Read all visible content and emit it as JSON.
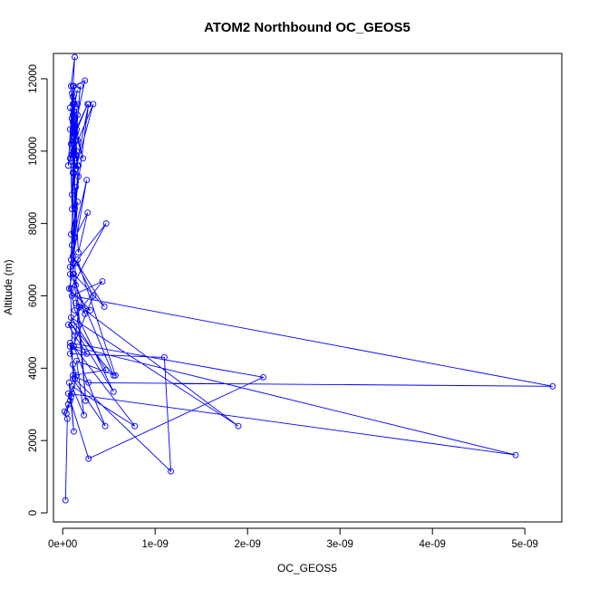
{
  "chart_data": {
    "type": "line",
    "title": "ATOM2 Northbound OC_GEOS5",
    "xlabel": "OC_GEOS5",
    "ylabel": "Altitude (m)",
    "xlim": [
      -1e-10,
      5.4e-09
    ],
    "ylim": [
      -250,
      12700
    ],
    "x_ticks": [
      {
        "value": 0,
        "label": "0e+00"
      },
      {
        "value": 1e-09,
        "label": "1e-09"
      },
      {
        "value": 2e-09,
        "label": "2e-09"
      },
      {
        "value": 3e-09,
        "label": "3e-09"
      },
      {
        "value": 4e-09,
        "label": "4e-09"
      },
      {
        "value": 5e-09,
        "label": "5e-09"
      }
    ],
    "y_ticks": [
      {
        "value": 0,
        "label": "0"
      },
      {
        "value": 2000,
        "label": "2000"
      },
      {
        "value": 4000,
        "label": "4000"
      },
      {
        "value": 6000,
        "label": "6000"
      },
      {
        "value": 8000,
        "label": "8000"
      },
      {
        "value": 10000,
        "label": "10000"
      },
      {
        "value": 12000,
        "label": "12000"
      }
    ],
    "series_color": "#0000ff",
    "marker": "open-circle",
    "grid": false,
    "series": [
      {
        "x": [
          3e-11,
          5e-11,
          2e-11,
          6e-11,
          4e-11,
          8e-11,
          1e-10,
          7e-11,
          1.2e-10,
          9e-11,
          1.5e-10,
          1.1e-10,
          8e-11,
          2.6e-10,
          1.3e-10,
          6e-11,
          4.3e-10,
          1e-10,
          5.3e-09,
          2.8e-10,
          1.1e-10,
          4.7e-10,
          9e-11,
          1.9e-09,
          1.4e-10,
          3e-10,
          7e-11,
          1.3e-10,
          2.5e-10,
          1.2e-10,
          4.5e-10,
          1.1e-10,
          3.3e-10,
          8e-11,
          1.1e-09,
          1.17e-09,
          1.3e-10,
          8e-11,
          2.17e-09,
          2.8e-10,
          6e-11,
          4.9e-09,
          1.2e-10,
          4.6e-10,
          1.1e-10,
          8e-11,
          1.3e-10,
          2.7e-10,
          1.7e-10,
          1.2e-10,
          1e-10,
          2.6e-10,
          8e-11,
          1.4e-10,
          5.5e-10,
          1e-10,
          5.5e-10,
          1.3e-10,
          9e-11,
          4.7e-10,
          1.6e-10,
          5.7e-10,
          1.5e-10,
          2.3e-10,
          1e-10,
          7.8e-10,
          1.2e-10,
          1.8e-10,
          2.4e-10,
          1.1e-10,
          1.6e-10,
          9e-11,
          1.4e-10,
          1.1e-10,
          1.7e-10,
          9e-11,
          1.3e-10,
          1.3e-10,
          2.8e-10,
          1.4e-10,
          3.3e-10,
          1e-10,
          8e-11,
          1.4e-10,
          1e-10,
          8e-11,
          1.6e-10,
          1e-10,
          1.2e-10,
          1.4e-10,
          1.1e-10,
          9e-11,
          1.3e-10,
          6e-11,
          1.2e-10,
          1.6e-10,
          1e-10,
          9e-11,
          2.7e-10,
          1.1e-10,
          1.6e-10,
          1e-10,
          1.2e-10,
          1.2e-10,
          1.9e-10,
          1.1e-10,
          1e-10,
          1.2e-10,
          2.4e-10,
          1.2e-10,
          1.7e-10,
          1.5e-10,
          1.1e-10,
          1.6e-10,
          1.4e-10,
          1e-10,
          1.1e-10,
          2.2e-10,
          1.6e-10,
          8e-11,
          1.5e-10,
          1.1e-10,
          1.2e-10,
          1.4e-10,
          1.2e-10,
          1.3e-10,
          1.1e-10,
          1.4e-10,
          1.2e-10,
          1.2e-10
        ],
        "y": [
          350,
          2600,
          2800,
          3000,
          2750,
          3100,
          3300,
          3600,
          2250,
          3200,
          3800,
          4100,
          4600,
          4400,
          4900,
          5200,
          6400,
          6000,
          3500,
          3600,
          3800,
          3950,
          5400,
          2400,
          5800,
          5600,
          6200,
          6900,
          3100,
          6600,
          5700,
          7100,
          6000,
          4400,
          4300,
          1150,
          3700,
          4700,
          3750,
          1500,
          3300,
          1600,
          4600,
          2400,
          3700,
          6800,
          7600,
          8300,
          7200,
          9400,
          7400,
          9200,
          6600,
          6300,
          3800,
          5200,
          3350,
          5600,
          6200,
          8000,
          7000,
          3800,
          4200,
          2700,
          3500,
          2400,
          4600,
          5700,
          5500,
          6600,
          8600,
          7700,
          9000,
          6900,
          9600,
          7000,
          10500,
          8400,
          11300,
          9500,
          11300,
          9900,
          9800,
          10700,
          8400,
          10600,
          11700,
          10900,
          11300,
          9800,
          10800,
          11800,
          12600,
          9600,
          10200,
          11300,
          11600,
          10200,
          11300,
          10400,
          11000,
          8800,
          10400,
          9600,
          11800,
          9400,
          10900,
          11800,
          11950,
          10500,
          9300,
          10000,
          11300,
          9600,
          10500,
          9900,
          11000,
          9800,
          10300,
          11200,
          10600,
          11800,
          9900,
          10300,
          11100,
          10600,
          11500,
          9900,
          10500,
          11300
        ]
      }
    ]
  }
}
